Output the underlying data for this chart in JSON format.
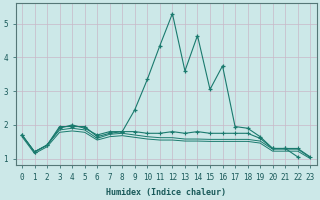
{
  "x": [
    0,
    1,
    2,
    3,
    4,
    5,
    6,
    7,
    8,
    9,
    10,
    11,
    12,
    13,
    14,
    15,
    16,
    17,
    18,
    19,
    20,
    21,
    22,
    23
  ],
  "line1": [
    1.7,
    1.2,
    1.4,
    1.95,
    1.95,
    1.95,
    1.65,
    1.75,
    1.8,
    2.45,
    3.35,
    4.35,
    5.3,
    3.6,
    4.65,
    3.05,
    3.75,
    1.95,
    1.9,
    1.65,
    1.3,
    1.3,
    1.05,
    null
  ],
  "line2": [
    1.7,
    1.2,
    1.4,
    1.9,
    2.0,
    1.9,
    1.7,
    1.8,
    1.8,
    1.8,
    1.75,
    1.75,
    1.8,
    1.75,
    1.8,
    1.75,
    1.75,
    1.75,
    1.75,
    1.6,
    1.3,
    1.3,
    1.3,
    1.05
  ],
  "line3": [
    1.7,
    1.2,
    1.4,
    1.85,
    1.9,
    1.85,
    1.6,
    1.72,
    1.75,
    1.7,
    1.65,
    1.62,
    1.62,
    1.58,
    1.58,
    1.57,
    1.57,
    1.57,
    1.57,
    1.52,
    1.28,
    1.28,
    1.28,
    1.03
  ],
  "line4": [
    1.65,
    1.15,
    1.35,
    1.78,
    1.82,
    1.78,
    1.55,
    1.65,
    1.68,
    1.63,
    1.58,
    1.55,
    1.55,
    1.52,
    1.52,
    1.51,
    1.51,
    1.51,
    1.51,
    1.46,
    1.22,
    1.22,
    1.22,
    1.0
  ],
  "bg_color": "#cce8e8",
  "line_color": "#1a7a6e",
  "grid_color": "#c8b8c8",
  "xlabel": "Humidex (Indice chaleur)",
  "yticks": [
    1,
    2,
    3,
    4,
    5
  ],
  "xticks": [
    0,
    1,
    2,
    3,
    4,
    5,
    6,
    7,
    8,
    9,
    10,
    11,
    12,
    13,
    14,
    15,
    16,
    17,
    18,
    19,
    20,
    21,
    22,
    23
  ],
  "xlim": [
    -0.5,
    23.5
  ],
  "ylim": [
    0.8,
    5.6
  ]
}
